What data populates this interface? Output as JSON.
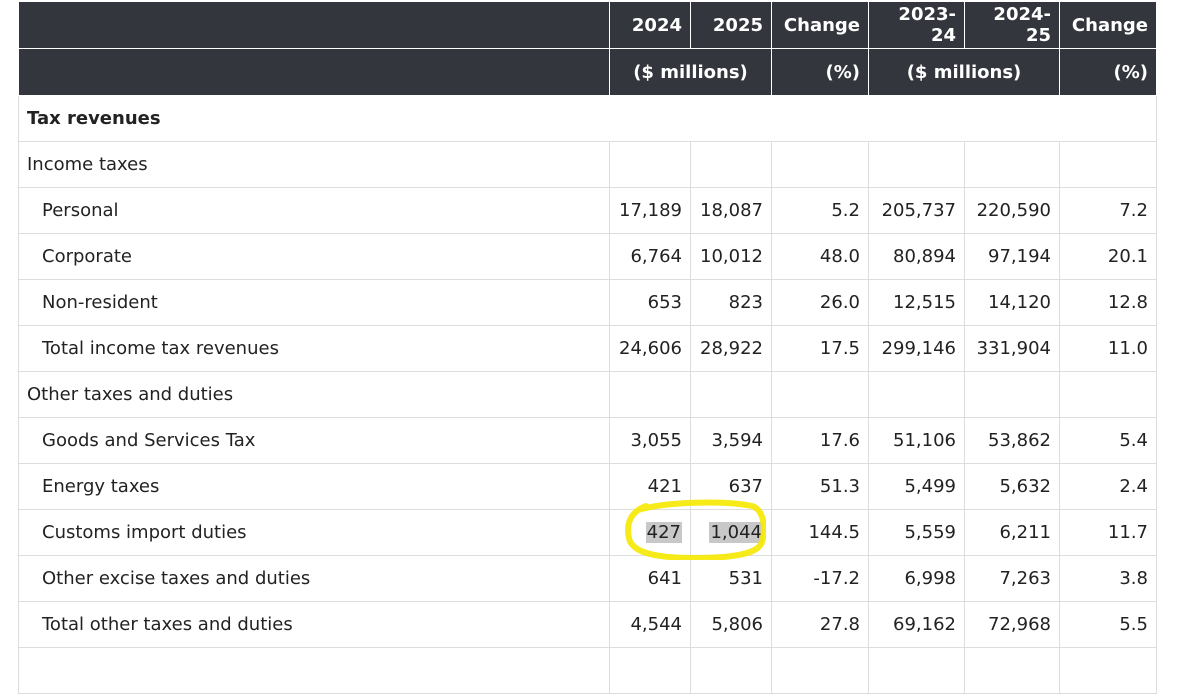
{
  "header": {
    "row1": [
      "2024",
      "2025",
      "Change",
      "2023-24",
      "2024-25",
      "Change"
    ],
    "row2": {
      "millions_a": "($ millions)",
      "pct_a": "(%)",
      "millions_b": "($ millions)",
      "pct_b": "(%)"
    }
  },
  "sections": {
    "tax_revenues": "Tax revenues",
    "income_taxes": "Income taxes",
    "other_taxes": "Other taxes and duties"
  },
  "rows": [
    {
      "label": "Personal",
      "v": [
        "17,189",
        "18,087",
        "5.2",
        "205,737",
        "220,590",
        "7.2"
      ]
    },
    {
      "label": "Corporate",
      "v": [
        "6,764",
        "10,012",
        "48.0",
        "80,894",
        "97,194",
        "20.1"
      ]
    },
    {
      "label": "Non-resident",
      "v": [
        "653",
        "823",
        "26.0",
        "12,515",
        "14,120",
        "12.8"
      ]
    },
    {
      "label": "Total income tax revenues",
      "v": [
        "24,606",
        "28,922",
        "17.5",
        "299,146",
        "331,904",
        "11.0"
      ]
    },
    {
      "label": "Goods and Services Tax",
      "v": [
        "3,055",
        "3,594",
        "17.6",
        "51,106",
        "53,862",
        "5.4"
      ]
    },
    {
      "label": "Energy taxes",
      "v": [
        "421",
        "637",
        "51.3",
        "5,499",
        "5,632",
        "2.4"
      ]
    },
    {
      "label": "Customs import duties",
      "v": [
        "427",
        "1,044",
        "144.5",
        "5,559",
        "6,211",
        "11.7"
      ]
    },
    {
      "label": "Other excise taxes and duties",
      "v": [
        "641",
        "531",
        "-17.2",
        "6,998",
        "7,263",
        "3.8"
      ]
    },
    {
      "label": "Total other taxes and duties",
      "v": [
        "4,544",
        "5,806",
        "27.8",
        "69,162",
        "72,968",
        "5.5"
      ]
    }
  ],
  "colors": {
    "header_bg": "#33363c",
    "grid": "#dddddd",
    "highlight": "#c8c8c8",
    "marker": "#f5e800"
  }
}
